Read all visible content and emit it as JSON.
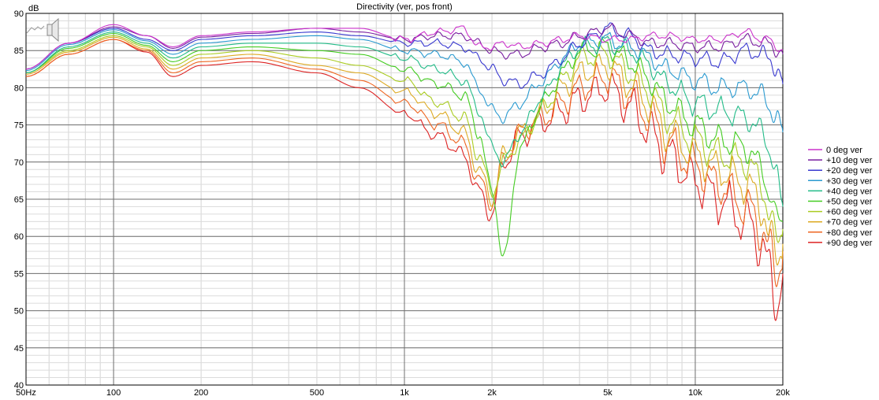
{
  "chart_data": {
    "type": "line",
    "title": "Directivity (ver, pos front)",
    "ylabel": "dB",
    "x_scale": "log",
    "xlim": [
      50,
      20000
    ],
    "ylim": [
      40,
      90
    ],
    "x_ticks": [
      {
        "value": 50,
        "label": "50Hz"
      },
      {
        "value": 100,
        "label": "100"
      },
      {
        "value": 200,
        "label": "200"
      },
      {
        "value": 500,
        "label": "500"
      },
      {
        "value": 1000,
        "label": "1k"
      },
      {
        "value": 2000,
        "label": "2k"
      },
      {
        "value": 5000,
        "label": "5k"
      },
      {
        "value": 10000,
        "label": "10k"
      },
      {
        "value": 20000,
        "label": "20k"
      }
    ],
    "y_ticks": [
      40,
      45,
      50,
      55,
      60,
      65,
      70,
      75,
      80,
      85,
      90
    ],
    "grid": true,
    "legend_position": "right",
    "x": [
      50,
      70,
      100,
      130,
      160,
      200,
      300,
      500,
      700,
      1000,
      1300,
      1600,
      1800,
      2000,
      2200,
      2500,
      3000,
      3500,
      4000,
      5000,
      6000,
      7000,
      8000,
      10000,
      12000,
      15000,
      17000,
      18000,
      19000,
      20000
    ],
    "series": [
      {
        "name": "0 deg ver",
        "color": "#cc33cc",
        "values": [
          82.5,
          86,
          88.5,
          87,
          85.5,
          87,
          87.5,
          88,
          88,
          86.5,
          87.5,
          88,
          85.5,
          85.5,
          86,
          85.5,
          86,
          86.5,
          87,
          86.5,
          86.5,
          87,
          87,
          86.5,
          86.5,
          87.5,
          86.5,
          86.5,
          85.5,
          85
        ]
      },
      {
        "name": "+10 deg ver",
        "color": "#7a1fa0",
        "values": [
          82.5,
          86,
          88.2,
          87,
          85.3,
          86.8,
          87.3,
          88,
          87.5,
          86.5,
          87,
          87,
          86,
          85,
          84.5,
          84.5,
          85.5,
          86,
          87,
          88,
          87,
          86,
          86,
          85.5,
          85.5,
          86.5,
          86,
          86,
          85,
          84.5
        ]
      },
      {
        "name": "+20 deg ver",
        "color": "#3a3ad0",
        "values": [
          82.5,
          86,
          88,
          86.5,
          85,
          86.5,
          87,
          87.5,
          87,
          86,
          86,
          85.5,
          84,
          82.5,
          81,
          80.5,
          82,
          84,
          86,
          88,
          87,
          85,
          84.5,
          84,
          83.5,
          85,
          84.5,
          84,
          82.5,
          80.5
        ]
      },
      {
        "name": "+30 deg ver",
        "color": "#2a9ad0",
        "values": [
          82.3,
          85.8,
          87.8,
          86.3,
          84.5,
          86,
          86.5,
          87,
          86.5,
          85,
          84.5,
          83.5,
          80,
          77,
          76,
          78,
          81,
          84,
          86,
          86.5,
          85.5,
          84,
          82.5,
          81,
          80,
          80,
          79,
          77.5,
          76,
          74
        ]
      },
      {
        "name": "+40 deg ver",
        "color": "#22bb88",
        "values": [
          82,
          85.5,
          87.5,
          86,
          84,
          85.5,
          86,
          86,
          85.5,
          84,
          82.5,
          81,
          77,
          72,
          70,
          74,
          79,
          83,
          85.5,
          86,
          85,
          83,
          80.5,
          78,
          77,
          76,
          74,
          72,
          68,
          64
        ]
      },
      {
        "name": "+50 deg ver",
        "color": "#44cc22",
        "values": [
          82,
          85.3,
          87.3,
          85.7,
          83.5,
          85,
          85.5,
          85,
          84.5,
          82.5,
          80.5,
          79,
          74,
          66,
          57,
          72,
          78,
          82,
          85,
          85.5,
          83.5,
          81,
          78,
          75,
          73,
          72,
          69,
          66,
          62,
          62
        ]
      },
      {
        "name": "+60 deg ver",
        "color": "#aacc22",
        "values": [
          82,
          85,
          87,
          85.5,
          83,
          84.5,
          85,
          84,
          83,
          81,
          78,
          76,
          71,
          66,
          70,
          73,
          77,
          81,
          84,
          84.5,
          82,
          79.5,
          76,
          73,
          71,
          70,
          67,
          63,
          59,
          61
        ]
      },
      {
        "name": "+70 deg ver",
        "color": "#ddaa22",
        "values": [
          81.8,
          84.8,
          86.8,
          85.2,
          82.5,
          84,
          84.5,
          83,
          82,
          79.5,
          76.5,
          74,
          69,
          65,
          71,
          74,
          77,
          80,
          82,
          83,
          80.5,
          77.5,
          74,
          71,
          69,
          67,
          64,
          60,
          57,
          59
        ]
      },
      {
        "name": "+80 deg ver",
        "color": "#ee6622",
        "values": [
          81.5,
          84.5,
          86.5,
          85,
          82,
          83.5,
          84,
          82.5,
          81,
          78,
          75,
          72.5,
          67.5,
          64.5,
          70.5,
          74,
          76,
          78,
          80,
          81.5,
          79,
          76,
          72.5,
          69.5,
          67,
          64,
          61,
          58,
          55,
          58
        ]
      },
      {
        "name": "+90 deg ver",
        "color": "#dd2222",
        "values": [
          81.5,
          84.5,
          86.5,
          84.8,
          81.5,
          83,
          83.5,
          82,
          80,
          76.5,
          73.5,
          71,
          66,
          63,
          70,
          73.5,
          75.5,
          77,
          78.5,
          80,
          77.5,
          74,
          71,
          67.5,
          65,
          62,
          59,
          55,
          51,
          55
        ]
      }
    ]
  }
}
